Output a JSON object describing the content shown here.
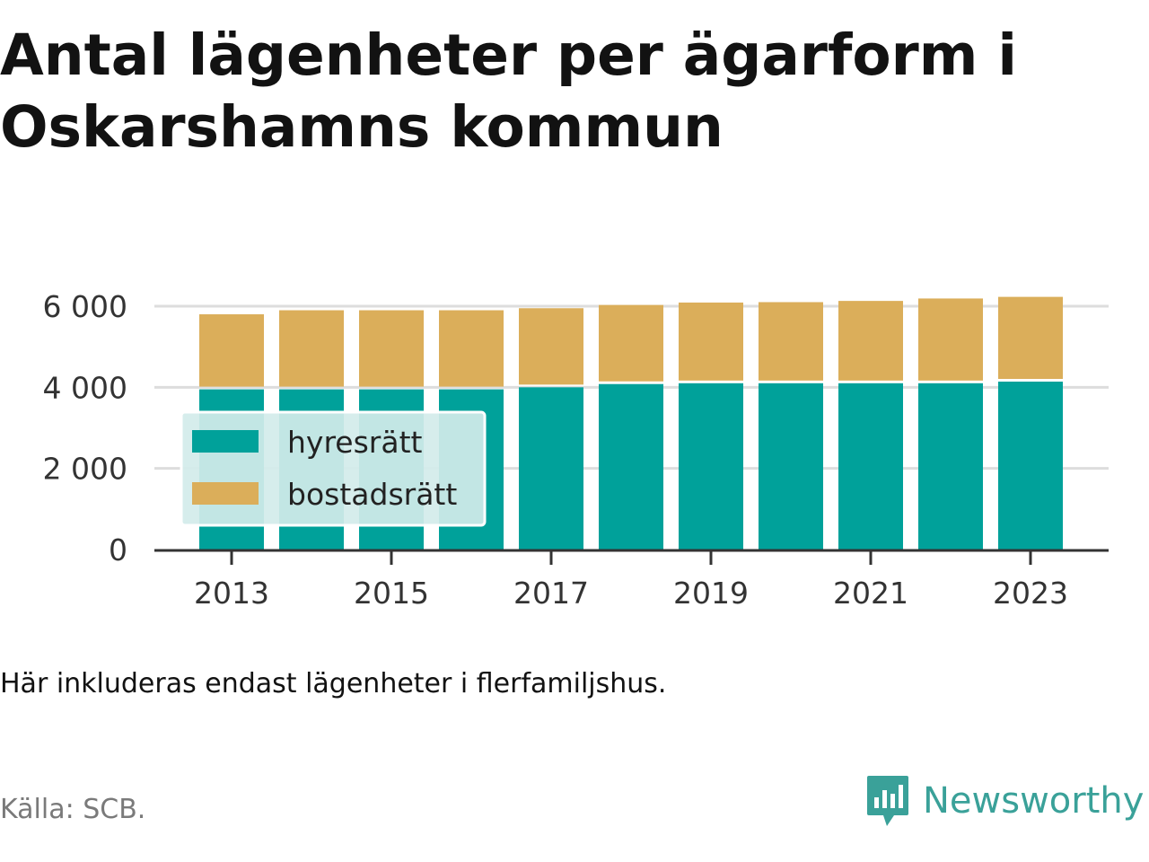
{
  "title": "Antal lägenheter per ägarform i Oskarshamns kommun",
  "note": "Här inkluderas endast lägenheter i flerfamiljshus.",
  "source": "Källa: SCB.",
  "brand": "Newsworthy",
  "colors": {
    "hyresratt": "#00a19a",
    "bostadsratt": "#dbae5a",
    "axis": "#333333",
    "grid": "#dddddd",
    "brand": "#3aa199"
  },
  "chart_data": {
    "type": "bar",
    "stacked": true,
    "title": "Antal lägenheter per ägarform i Oskarshamns kommun",
    "xlabel": "",
    "ylabel": "",
    "categories": [
      "2013",
      "2014",
      "2015",
      "2016",
      "2017",
      "2018",
      "2019",
      "2020",
      "2021",
      "2022",
      "2023"
    ],
    "x_tick_labels": [
      "2013",
      "2015",
      "2017",
      "2019",
      "2021",
      "2023"
    ],
    "y_tick_labels": [
      "0",
      "2 000",
      "4 000",
      "6 000"
    ],
    "y_ticks": [
      0,
      2000,
      4000,
      6000
    ],
    "ylim": [
      0,
      6300
    ],
    "grid": true,
    "legend_position": "left-center",
    "series": [
      {
        "name": "hyresrätt",
        "values": [
          3950,
          3950,
          3950,
          3950,
          4000,
          4080,
          4100,
          4100,
          4100,
          4100,
          4140
        ],
        "color": "#00a19a"
      },
      {
        "name": "bostadsrätt",
        "values": [
          1850,
          1950,
          1950,
          1950,
          1950,
          1950,
          1990,
          2000,
          2030,
          2090,
          2090
        ],
        "color": "#dbae5a"
      }
    ]
  }
}
